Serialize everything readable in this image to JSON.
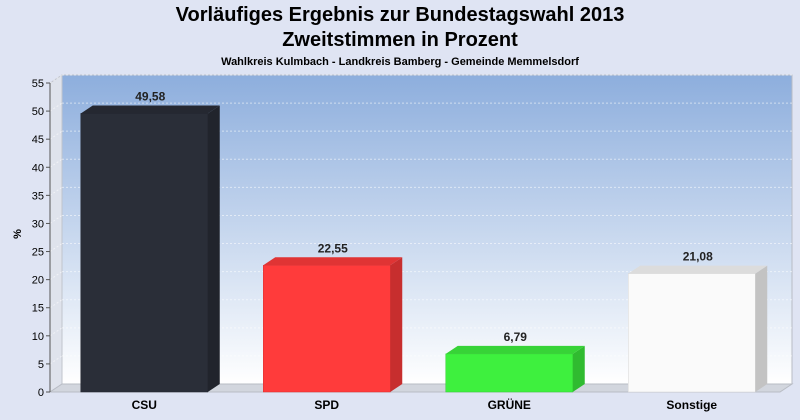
{
  "header": {
    "title": "Vorläufiges Ergebnis zur Bundestagswahl 2013",
    "subtitle": "Zweitstimmen in Prozent",
    "caption": "Wahlkreis Kulmbach - Landkreis Bamberg - Gemeinde Memmelsdorf"
  },
  "chart_data": {
    "type": "bar",
    "title": "Vorläufiges Ergebnis zur Bundestagswahl 2013",
    "subtitle": "Zweitstimmen in Prozent",
    "ylabel": "%",
    "xlabel": "",
    "categories": [
      "CSU",
      "SPD",
      "GRÜNE",
      "Sonstige"
    ],
    "values": [
      49.58,
      22.55,
      6.79,
      21.08
    ],
    "value_labels": [
      "49,58",
      "22,55",
      "6,79",
      "21,08"
    ],
    "colors": [
      "#2a2e38",
      "#ff3b3b",
      "#3ef03e",
      "#fafafa"
    ],
    "ylim": [
      0,
      55
    ],
    "yticks": [
      0,
      5,
      10,
      15,
      20,
      25,
      30,
      35,
      40,
      45,
      50,
      55
    ],
    "grid": true,
    "legend": "none"
  }
}
